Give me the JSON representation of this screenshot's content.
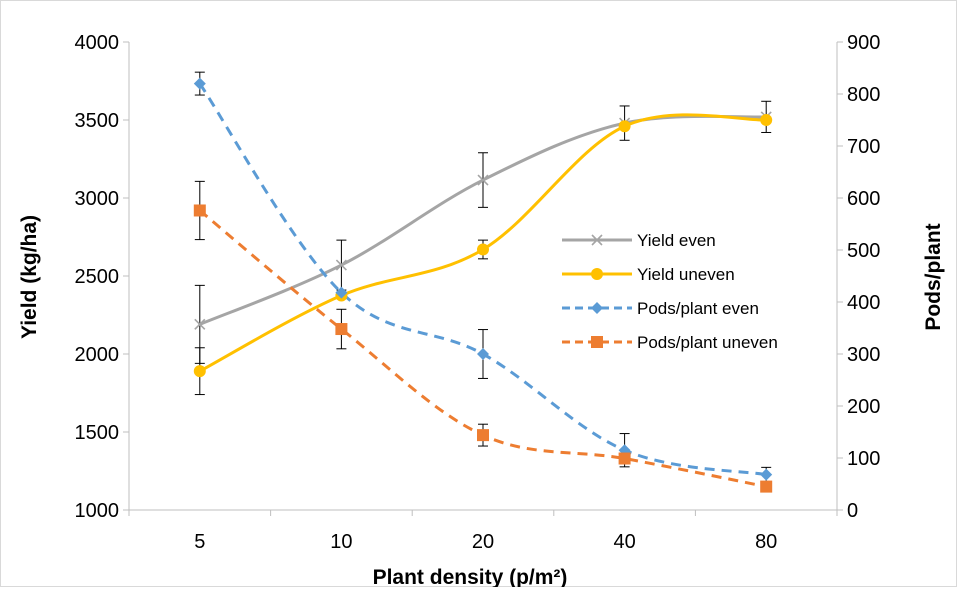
{
  "chart_data": {
    "type": "line",
    "title": "",
    "xlabel": "Plant density (p/m²)",
    "ylabel": "Yield (kg/ha)",
    "y2label": "Pods/plant",
    "categories": [
      "5",
      "10",
      "20",
      "40",
      "80"
    ],
    "ylim": [
      1000,
      4000
    ],
    "yticks": [
      1000,
      1500,
      2000,
      2500,
      3000,
      3500,
      4000
    ],
    "y2lim": [
      0,
      900
    ],
    "y2ticks": [
      0,
      100,
      200,
      300,
      400,
      500,
      600,
      700,
      800,
      900
    ],
    "legend_position": "right",
    "grid": false,
    "series": [
      {
        "name": "Yield even",
        "axis": "left",
        "values": [
          2190,
          2570,
          3115,
          3480,
          3520
        ],
        "error": [
          250,
          160,
          175,
          110,
          100
        ],
        "color": "#A5A5A5",
        "line_style": "solid",
        "marker": "x"
      },
      {
        "name": "Yield uneven",
        "axis": "left",
        "values": [
          1890,
          2375,
          2670,
          3460,
          3500
        ],
        "error": [
          150,
          0,
          60,
          0,
          0
        ],
        "color": "#FFC000",
        "line_style": "solid",
        "marker": "circle"
      },
      {
        "name": "Pods/plant even",
        "axis": "right",
        "values": [
          820,
          418,
          300,
          115,
          68
        ],
        "error": [
          22,
          0,
          47,
          32,
          14
        ],
        "color": "#5B9BD5",
        "line_style": "dashed",
        "marker": "diamond"
      },
      {
        "name": "Pods/plant uneven",
        "axis": "right",
        "values": [
          576,
          348,
          144,
          99,
          45
        ],
        "error": [
          56,
          38,
          21,
          0,
          0
        ],
        "color": "#ED7D31",
        "line_style": "dashed",
        "marker": "square"
      }
    ]
  }
}
